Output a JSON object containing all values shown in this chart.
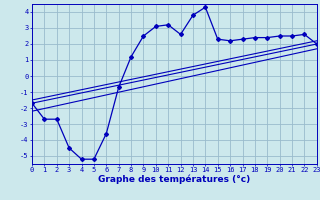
{
  "xlabel": "Graphe des températures (°c)",
  "bg_color": "#cce8ec",
  "line_color": "#0000bb",
  "grid_color": "#99bbcc",
  "x_hours": [
    0,
    1,
    2,
    3,
    4,
    5,
    6,
    7,
    8,
    9,
    10,
    11,
    12,
    13,
    14,
    15,
    16,
    17,
    18,
    19,
    20,
    21,
    22,
    23
  ],
  "y_temps": [
    -1.7,
    -2.7,
    -2.7,
    -4.5,
    -5.2,
    -5.2,
    -3.6,
    -0.7,
    1.2,
    2.5,
    3.1,
    3.2,
    2.6,
    3.8,
    4.3,
    2.3,
    2.2,
    2.3,
    2.4,
    2.4,
    2.5,
    2.5,
    2.6,
    2.0
  ],
  "trend1_x": [
    0,
    23
  ],
  "trend1_y": [
    -1.5,
    2.2
  ],
  "trend2_x": [
    0,
    23
  ],
  "trend2_y": [
    -1.7,
    2.0
  ],
  "trend3_x": [
    0,
    23
  ],
  "trend3_y": [
    -2.2,
    1.7
  ],
  "xlim": [
    0,
    23
  ],
  "ylim": [
    -5.5,
    4.5
  ],
  "yticks": [
    -5,
    -4,
    -3,
    -2,
    -1,
    0,
    1,
    2,
    3,
    4
  ],
  "xticks": [
    0,
    1,
    2,
    3,
    4,
    5,
    6,
    7,
    8,
    9,
    10,
    11,
    12,
    13,
    14,
    15,
    16,
    17,
    18,
    19,
    20,
    21,
    22,
    23
  ],
  "tick_fontsize": 5.0,
  "xlabel_fontsize": 6.5
}
